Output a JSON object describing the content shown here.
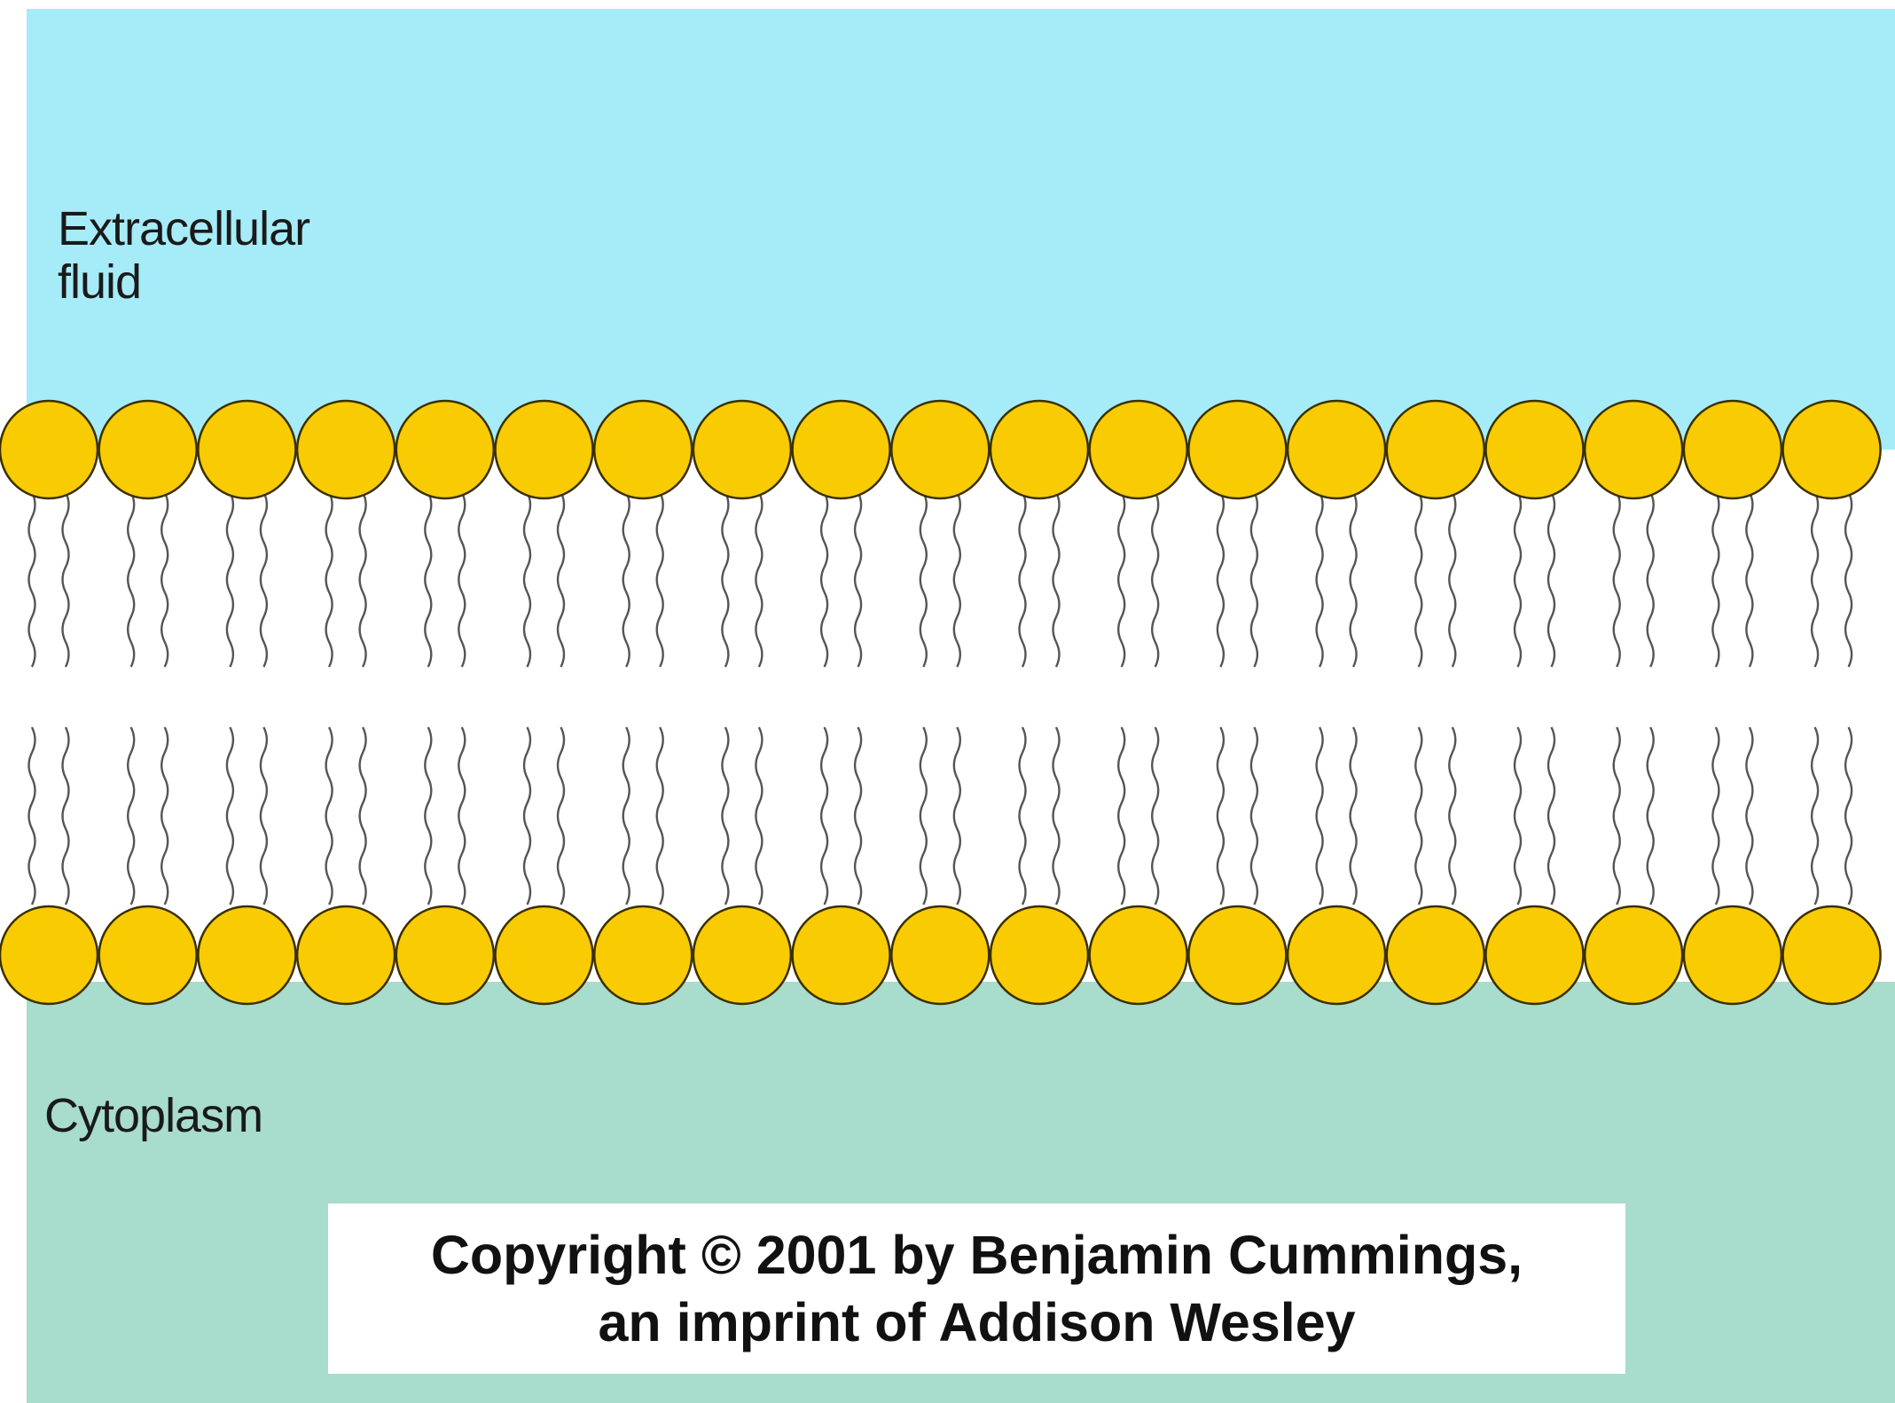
{
  "labels": {
    "extracellular_line1": "Extracellular",
    "extracellular_line2": "fluid",
    "cytoplasm": "Cytoplasm"
  },
  "copyright": {
    "line1": "Copyright © 2001 by Benjamin Cummings,",
    "line2": "an imprint of Addison Wesley"
  },
  "colors": {
    "extracellular": "#a6ecf8",
    "cytoplasm": "#a8dccd",
    "membrane_interior": "#ffffff",
    "phosphate_head": "#f8cb03",
    "head_outline": "#3a3000",
    "lipid_tail": "#555555"
  }
}
